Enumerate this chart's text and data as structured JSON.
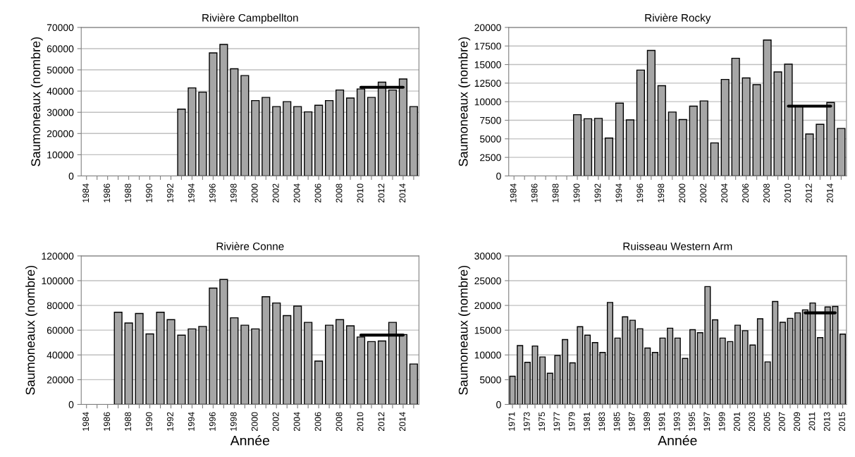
{
  "chart_data": [
    {
      "type": "bar",
      "title": "Rivière Campbellton",
      "ylabel": "Saumoneaux (nombre)",
      "grid": "y",
      "ylim": [
        0,
        70000
      ],
      "yticks": [
        0,
        10000,
        20000,
        30000,
        40000,
        50000,
        60000,
        70000
      ],
      "categories": [
        "1984",
        null,
        "1986",
        null,
        "1988",
        null,
        "1990",
        null,
        "1992",
        null,
        "1994",
        null,
        "1996",
        null,
        "1998",
        null,
        "2000",
        null,
        "2002",
        null,
        "2004",
        null,
        "2006",
        null,
        "2008",
        null,
        "2010",
        null,
        "2012",
        null,
        "2014",
        null
      ],
      "series": [
        {
          "color": "#a6a6a6",
          "values": [
            null,
            null,
            null,
            null,
            null,
            null,
            null,
            null,
            null,
            31500,
            41500,
            39500,
            58000,
            62000,
            50500,
            47300,
            35500,
            37000,
            32700,
            35000,
            32700,
            30200,
            33300,
            35500,
            40500,
            36700,
            41000,
            37000,
            44200,
            40500,
            45700,
            32700
          ]
        },
        {
          "type": "line",
          "color": "#000000",
          "values": [
            null,
            null,
            null,
            null,
            null,
            null,
            null,
            null,
            null,
            null,
            null,
            null,
            null,
            null,
            null,
            null,
            null,
            null,
            null,
            null,
            null,
            null,
            null,
            null,
            null,
            null,
            41800,
            41800,
            41800,
            41800,
            41800,
            null
          ]
        }
      ]
    },
    {
      "type": "bar",
      "title": "Rivière Rocky",
      "ylabel": "Saumoneaux (nombre)",
      "grid": "y",
      "ylim": [
        0,
        20000
      ],
      "yticks": [
        0,
        2500,
        5000,
        7500,
        10000,
        12500,
        15000,
        17500,
        20000
      ],
      "categories": [
        "1984",
        null,
        "1986",
        null,
        "1988",
        null,
        "1990",
        null,
        "1992",
        null,
        "1994",
        null,
        "1996",
        null,
        "1998",
        null,
        "2000",
        null,
        "2002",
        null,
        "2004",
        null,
        "2006",
        null,
        "2008",
        null,
        "2010",
        null,
        "2012",
        null,
        "2014",
        null
      ],
      "series": [
        {
          "color": "#a6a6a6",
          "values": [
            null,
            null,
            null,
            null,
            null,
            null,
            8250,
            7700,
            7750,
            5100,
            9800,
            7550,
            14250,
            16900,
            12150,
            8600,
            7600,
            9400,
            10100,
            4450,
            13000,
            15850,
            13200,
            12300,
            18300,
            14000,
            15050,
            9400,
            5650,
            6950,
            9900,
            6400
          ]
        },
        {
          "type": "line",
          "color": "#000000",
          "values": [
            null,
            null,
            null,
            null,
            null,
            null,
            null,
            null,
            null,
            null,
            null,
            null,
            null,
            null,
            null,
            null,
            null,
            null,
            null,
            null,
            null,
            null,
            null,
            null,
            null,
            null,
            9400,
            9400,
            9400,
            9400,
            9400,
            null
          ]
        }
      ]
    },
    {
      "type": "bar",
      "title": "Rivière Conne",
      "xlabel": "Année",
      "ylabel": "Saumoneaux (nombre)",
      "grid": "y",
      "ylim": [
        0,
        120000
      ],
      "yticks": [
        0,
        20000,
        40000,
        60000,
        80000,
        100000,
        120000
      ],
      "categories": [
        "1984",
        null,
        "1986",
        null,
        "1988",
        null,
        "1990",
        null,
        "1992",
        null,
        "1994",
        null,
        "1996",
        null,
        "1998",
        null,
        "2000",
        null,
        "2002",
        null,
        "2004",
        null,
        "2006",
        null,
        "2008",
        null,
        "2010",
        null,
        "2012",
        null,
        "2014",
        null
      ],
      "series": [
        {
          "color": "#a6a6a6",
          "values": [
            null,
            null,
            null,
            74500,
            65800,
            73500,
            57000,
            74500,
            68500,
            56000,
            61000,
            63000,
            94000,
            101000,
            70000,
            64000,
            61000,
            87000,
            82000,
            71800,
            79500,
            66300,
            35000,
            64000,
            68500,
            63500,
            54500,
            50800,
            51300,
            66300,
            56500,
            32700
          ]
        },
        {
          "type": "line",
          "color": "#000000",
          "values": [
            null,
            null,
            null,
            null,
            null,
            null,
            null,
            null,
            null,
            null,
            null,
            null,
            null,
            null,
            null,
            null,
            null,
            null,
            null,
            null,
            null,
            null,
            null,
            null,
            null,
            null,
            56000,
            56000,
            56000,
            56000,
            56000,
            null
          ]
        }
      ]
    },
    {
      "type": "bar",
      "title": "Ruisseau Western Arm",
      "xlabel": "Année",
      "ylabel": "Saumoneaux (nombre)",
      "grid": "y",
      "ylim": [
        0,
        30000
      ],
      "yticks": [
        0,
        5000,
        10000,
        15000,
        20000,
        25000,
        30000
      ],
      "categories": [
        "1971",
        null,
        "1973",
        null,
        "1975",
        null,
        "1977",
        null,
        "1979",
        null,
        "1981",
        null,
        "1983",
        null,
        "1985",
        null,
        "1987",
        null,
        "1989",
        null,
        "1991",
        null,
        "1993",
        null,
        "1995",
        null,
        "1997",
        null,
        "1999",
        null,
        "2001",
        null,
        "2003",
        null,
        "2005",
        null,
        "2007",
        null,
        "2009",
        null,
        "2011",
        null,
        "2013",
        null,
        "2015"
      ],
      "series": [
        {
          "color": "#a6a6a6",
          "values": [
            5700,
            11900,
            8500,
            11800,
            9600,
            6300,
            9900,
            13100,
            8400,
            15700,
            14000,
            12500,
            10500,
            20600,
            13400,
            17700,
            17000,
            15300,
            11400,
            10500,
            13400,
            15400,
            13400,
            9300,
            15100,
            14500,
            23800,
            17100,
            13400,
            12700,
            16000,
            14900,
            12000,
            17300,
            8600,
            20800,
            16600,
            17400,
            18500,
            19100,
            20500,
            13500,
            19700,
            19800,
            14200
          ]
        },
        {
          "type": "line",
          "color": "#000000",
          "values": [
            null,
            null,
            null,
            null,
            null,
            null,
            null,
            null,
            null,
            null,
            null,
            null,
            null,
            null,
            null,
            null,
            null,
            null,
            null,
            null,
            null,
            null,
            null,
            null,
            null,
            null,
            null,
            null,
            null,
            null,
            null,
            null,
            null,
            null,
            null,
            null,
            null,
            null,
            null,
            18500,
            18500,
            18500,
            18500,
            18500,
            null
          ]
        }
      ]
    }
  ]
}
